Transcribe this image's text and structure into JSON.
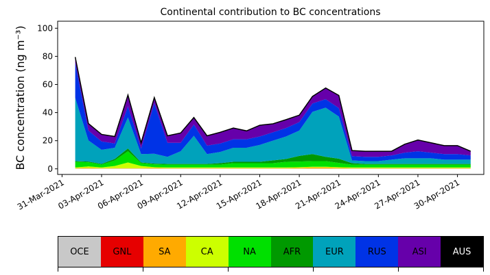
{
  "chart_data": {
    "type": "area",
    "stacked": true,
    "title": "Continental contribution to BC concentrations",
    "ylabel": "BC concentration (ng m⁻³)",
    "xlabel": "",
    "ylim": [
      -4,
      105
    ],
    "xlim": [
      "2021-03-30T16:00",
      "2021-05-02T00:00"
    ],
    "yticks": [
      0,
      20,
      40,
      60,
      80,
      100
    ],
    "xticks": [
      "31-Mar-2021",
      "03-Apr-2021",
      "06-Apr-2021",
      "09-Apr-2021",
      "12-Apr-2021",
      "15-Apr-2021",
      "18-Apr-2021",
      "21-Apr-2021",
      "24-Apr-2021",
      "27-Apr-2021",
      "30-Apr-2021"
    ],
    "x": [
      "2021-04-01",
      "2021-04-02",
      "2021-04-03",
      "2021-04-04",
      "2021-04-05",
      "2021-04-06",
      "2021-04-07",
      "2021-04-08",
      "2021-04-09",
      "2021-04-10",
      "2021-04-11",
      "2021-04-12",
      "2021-04-13",
      "2021-04-14",
      "2021-04-15",
      "2021-04-16",
      "2021-04-17",
      "2021-04-18",
      "2021-04-19",
      "2021-04-20",
      "2021-04-21",
      "2021-04-22",
      "2021-04-23",
      "2021-04-24",
      "2021-04-25",
      "2021-04-26",
      "2021-04-27",
      "2021-04-28",
      "2021-04-29",
      "2021-04-30",
      "2021-05-01"
    ],
    "series": [
      {
        "name": "OCE",
        "color": "#c8c8c8",
        "values": [
          0.2,
          0.2,
          0.2,
          0.2,
          0.2,
          0.2,
          0.2,
          0.2,
          0.2,
          0.2,
          0.2,
          0.2,
          0.2,
          0.2,
          0.2,
          0.2,
          0.2,
          0.2,
          0.2,
          0.2,
          0.2,
          0.2,
          0.2,
          0.2,
          0.2,
          0.2,
          0.2,
          0.2,
          0.2,
          0.2,
          0.2
        ]
      },
      {
        "name": "GNL",
        "color": "#e60000",
        "values": [
          0,
          0,
          0,
          0,
          0,
          0,
          0,
          0,
          0,
          0,
          0,
          0,
          0,
          0,
          0,
          0,
          0,
          0,
          0,
          0,
          0,
          0,
          0,
          0,
          0,
          0,
          0,
          0,
          0,
          0,
          0
        ]
      },
      {
        "name": "SA",
        "color": "#ffaa00",
        "values": [
          0.3,
          0.5,
          0.3,
          0.3,
          0.3,
          0.3,
          0.5,
          0.3,
          0.3,
          0.3,
          0.3,
          0.3,
          0.3,
          0.3,
          0.3,
          0.3,
          0.3,
          0.5,
          0.8,
          0.8,
          0.5,
          0.3,
          0.3,
          0.3,
          0.3,
          0.3,
          0.3,
          0.3,
          0.3,
          0.3,
          0.3
        ]
      },
      {
        "name": "CA",
        "color": "#ccff00",
        "values": [
          0.5,
          1.0,
          0.5,
          1.5,
          4.0,
          1.5,
          0.5,
          0.5,
          0.5,
          0.5,
          0.5,
          0.5,
          0.5,
          0.5,
          0.5,
          0.5,
          0.5,
          0.5,
          0.5,
          0.5,
          0.5,
          0.5,
          0.5,
          0.5,
          0.5,
          0.5,
          0.5,
          0.5,
          0.5,
          0.5,
          0.5
        ]
      },
      {
        "name": "NA",
        "color": "#00e000",
        "values": [
          4,
          3,
          2,
          4,
          8,
          2,
          2,
          2,
          2,
          2,
          2,
          2,
          3,
          3,
          3,
          3,
          4,
          4,
          4,
          4,
          3,
          2,
          2,
          2,
          2,
          2,
          2,
          2,
          2,
          2,
          2
        ]
      },
      {
        "name": "AFR",
        "color": "#009900",
        "values": [
          0.5,
          0.5,
          0.5,
          1,
          2,
          0.5,
          0.5,
          0.5,
          0.5,
          0.5,
          0.5,
          1,
          1,
          1,
          1,
          2,
          2,
          4,
          5,
          3,
          3,
          1,
          0.5,
          0.5,
          0.5,
          0.5,
          0.5,
          0.5,
          0.5,
          0.5,
          0.5
        ]
      },
      {
        "name": "EUR",
        "color": "#00a2bb",
        "values": [
          45,
          15,
          10,
          8,
          22,
          6,
          7,
          5,
          9,
          20,
          7,
          8,
          10,
          10,
          12,
          14,
          16,
          18,
          30,
          35,
          30,
          2,
          2,
          2,
          3,
          4,
          4,
          4,
          3,
          3,
          3
        ]
      },
      {
        "name": "RUS",
        "color": "#0033e6",
        "values": [
          25,
          7,
          6,
          3,
          8,
          4,
          36,
          10,
          6,
          8,
          6,
          6,
          6,
          6,
          6,
          6,
          6,
          6,
          6,
          6,
          6,
          3,
          3,
          3,
          3,
          4,
          5,
          4,
          4,
          4,
          3
        ]
      },
      {
        "name": "ASI",
        "color": "#6600aa",
        "values": [
          4,
          5,
          5,
          5,
          8,
          4,
          4,
          5,
          7,
          5,
          7,
          8,
          8,
          6,
          8,
          6,
          6,
          5,
          5,
          8,
          9,
          4,
          4,
          4,
          3,
          6,
          8,
          7,
          6,
          6,
          3
        ]
      },
      {
        "name": "AUS",
        "color": "#000000",
        "values": [
          0,
          0,
          0,
          0,
          0,
          0,
          0,
          0,
          0,
          0,
          0,
          0,
          0,
          0,
          0,
          0,
          0,
          0,
          0,
          0,
          0,
          0,
          0,
          0,
          0,
          0,
          0,
          0,
          0,
          0,
          0
        ]
      }
    ]
  }
}
